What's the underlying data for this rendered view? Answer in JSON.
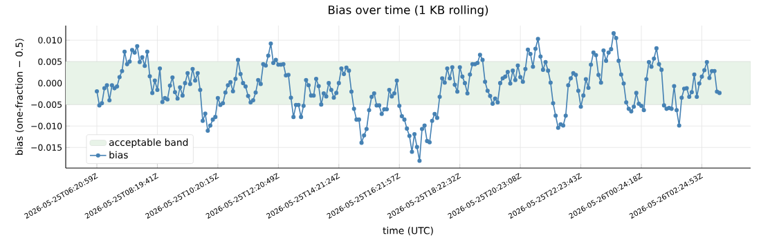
{
  "chart_data": {
    "type": "line",
    "title": "Bias over time (1 KB rolling)",
    "xlabel": "time (UTC)",
    "ylabel": "bias (one-fraction − 0.5)",
    "categories": [
      "2026-05-25T06:20:59Z",
      null,
      null,
      null,
      null,
      null,
      null,
      null,
      null,
      null,
      null,
      null,
      null,
      null,
      null,
      null,
      null,
      null,
      null,
      null,
      null,
      null,
      null,
      null,
      "2026-05-25T08:19:41Z",
      null,
      null,
      null,
      null,
      null,
      null,
      null,
      null,
      null,
      null,
      null,
      null,
      null,
      null,
      null,
      null,
      null,
      null,
      null,
      null,
      null,
      null,
      null,
      "2026-05-25T10:20:15Z",
      null,
      null,
      null,
      null,
      null,
      null,
      null,
      null,
      null,
      null,
      null,
      null,
      null,
      null,
      null,
      null,
      null,
      null,
      null,
      null,
      null,
      null,
      null,
      "2026-05-25T12:20:49Z",
      null,
      null,
      null,
      null,
      null,
      null,
      null,
      null,
      null,
      null,
      null,
      null,
      null,
      null,
      null,
      null,
      null,
      null,
      null,
      null,
      null,
      null,
      null,
      "2026-05-25T14:21:24Z",
      null,
      null,
      null,
      null,
      null,
      null,
      null,
      null,
      null,
      null,
      null,
      null,
      null,
      null,
      null,
      null,
      null,
      null,
      null,
      null,
      null,
      null,
      null,
      "2026-05-25T16:21:57Z",
      null,
      null,
      null,
      null,
      null,
      null,
      null,
      null,
      null,
      null,
      null,
      null,
      null,
      null,
      null,
      null,
      null,
      null,
      null,
      null,
      null,
      null,
      null,
      "2026-05-25T18:22:32Z",
      null,
      null,
      null,
      null,
      null,
      null,
      null,
      null,
      null,
      null,
      null,
      null,
      null,
      null,
      null,
      null,
      null,
      null,
      null,
      null,
      null,
      null,
      null,
      "2026-05-25T20:23:08Z",
      null,
      null,
      null,
      null,
      null,
      null,
      null,
      null,
      null,
      null,
      null,
      null,
      null,
      null,
      null,
      null,
      null,
      null,
      null,
      null,
      null,
      null,
      null,
      "2026-05-25T22:23:43Z",
      null,
      null,
      null,
      null,
      null,
      null,
      null,
      null,
      null,
      null,
      null,
      null,
      null,
      null,
      null,
      null,
      null,
      null,
      null,
      null,
      null,
      null,
      null,
      "2026-05-26T00:24:18Z",
      null,
      null,
      null,
      null,
      null,
      null,
      null,
      null,
      null,
      null,
      null,
      null,
      null,
      null,
      null,
      null,
      null,
      null,
      null,
      null,
      null,
      null,
      null,
      "2026-05-26T02:24:53Z",
      null,
      null,
      null,
      null,
      null,
      null,
      null
    ],
    "series": [
      {
        "name": "bias",
        "color": "#4682b4",
        "values": [
          -0.0019,
          -0.0052,
          -0.0047,
          -0.0012,
          -0.0005,
          -0.004,
          -0.0005,
          -0.0012,
          -0.0008,
          0.0014,
          0.0028,
          0.0073,
          0.0044,
          0.005,
          0.0077,
          0.0071,
          0.0086,
          0.0049,
          0.006,
          0.004,
          0.0073,
          0.0016,
          -0.0023,
          0.0006,
          -0.0016,
          0.0034,
          -0.0044,
          -0.0035,
          -0.0038,
          -0.0006,
          0.0013,
          -0.0021,
          -0.0036,
          -0.001,
          -0.0029,
          0.0,
          0.0023,
          -0.0002,
          0.0033,
          0.0006,
          0.0023,
          -0.0016,
          -0.0088,
          -0.0071,
          -0.0111,
          -0.0099,
          -0.0085,
          -0.0079,
          -0.0035,
          -0.0051,
          -0.0047,
          -0.0022,
          -0.0005,
          0.0002,
          -0.0019,
          0.001,
          0.0054,
          0.0021,
          0.0,
          -0.0008,
          -0.003,
          -0.0045,
          -0.004,
          -0.0022,
          0.0007,
          -0.0002,
          0.0044,
          0.0041,
          0.0064,
          0.0092,
          0.0047,
          0.0054,
          0.0043,
          0.0043,
          0.0044,
          0.0018,
          0.0019,
          -0.0034,
          -0.0079,
          -0.0051,
          -0.0051,
          -0.0079,
          -0.0053,
          0.0007,
          -0.0005,
          -0.0029,
          -0.0029,
          0.001,
          -0.0007,
          -0.005,
          -0.0024,
          -0.0031,
          0.0,
          -0.0016,
          -0.0034,
          -0.0023,
          0.0,
          0.0034,
          0.0021,
          0.0036,
          0.0029,
          -0.002,
          -0.006,
          -0.0085,
          -0.0085,
          -0.0139,
          -0.0122,
          -0.0107,
          -0.0063,
          -0.0032,
          -0.0024,
          -0.0052,
          -0.0052,
          -0.0072,
          -0.0061,
          -0.0061,
          -0.0016,
          -0.0031,
          -0.0024,
          0.0006,
          -0.0053,
          -0.0077,
          -0.0085,
          -0.0106,
          -0.0123,
          -0.016,
          -0.0119,
          -0.0149,
          -0.0181,
          -0.0107,
          -0.0099,
          -0.0135,
          -0.0138,
          -0.0088,
          -0.0072,
          -0.0081,
          -0.0032,
          0.0011,
          0.0001,
          0.0034,
          0.0011,
          0.0037,
          -0.0004,
          -0.002,
          0.0037,
          0.0015,
          0.0,
          -0.0024,
          0.002,
          0.0044,
          0.0044,
          0.0047,
          0.0066,
          0.0054,
          0.0003,
          -0.0018,
          -0.003,
          -0.0048,
          -0.0036,
          -0.0045,
          0.0,
          0.0011,
          0.0015,
          0.0026,
          -0.0001,
          0.0029,
          0.0007,
          0.0041,
          0.0014,
          0.0003,
          0.0033,
          0.0078,
          0.0068,
          0.0038,
          0.008,
          0.0103,
          0.0062,
          0.0031,
          0.0049,
          0.0029,
          0.0001,
          -0.0047,
          -0.0076,
          -0.0104,
          -0.0096,
          -0.0099,
          -0.0076,
          -0.0005,
          0.0011,
          0.0023,
          0.0019,
          -0.0018,
          -0.0055,
          -0.0029,
          0.0009,
          -0.0011,
          0.0043,
          0.0071,
          0.0065,
          0.0019,
          0.0001,
          0.0076,
          0.0052,
          0.0071,
          0.0079,
          0.0116,
          0.0105,
          0.0052,
          0.002,
          -0.0001,
          -0.0045,
          -0.006,
          -0.0066,
          -0.0055,
          -0.0023,
          -0.0048,
          -0.0053,
          -0.0063,
          0.0009,
          0.0049,
          0.0038,
          0.0057,
          0.0081,
          0.0044,
          0.0031,
          -0.0052,
          -0.006,
          -0.0058,
          -0.006,
          -0.0007,
          -0.0063,
          -0.0099,
          -0.0034,
          -0.0013,
          -0.0012,
          -0.0032,
          -0.0021,
          0.002,
          -0.0032,
          -0.0001,
          0.0015,
          0.003,
          0.0049,
          0.0012,
          0.0028,
          0.0028,
          -0.002,
          -0.0023
        ]
      }
    ],
    "bands": [
      {
        "axis": "y",
        "from": -0.005,
        "to": 0.005,
        "label": "acceptable band",
        "color": "#e8f3e8"
      }
    ],
    "ylim": [
      -0.0198,
      0.0134
    ],
    "yticks": [
      {
        "value": -0.015,
        "label": "−0.015"
      },
      {
        "value": -0.01,
        "label": "−0.010"
      },
      {
        "value": -0.005,
        "label": "−0.005"
      },
      {
        "value": 0,
        "label": "0.000"
      },
      {
        "value": 0.005,
        "label": "0.005"
      },
      {
        "value": 0.01,
        "label": "0.010"
      }
    ],
    "grid": true,
    "legend": "bottom left",
    "marker": "circle",
    "line_style": "solid"
  }
}
